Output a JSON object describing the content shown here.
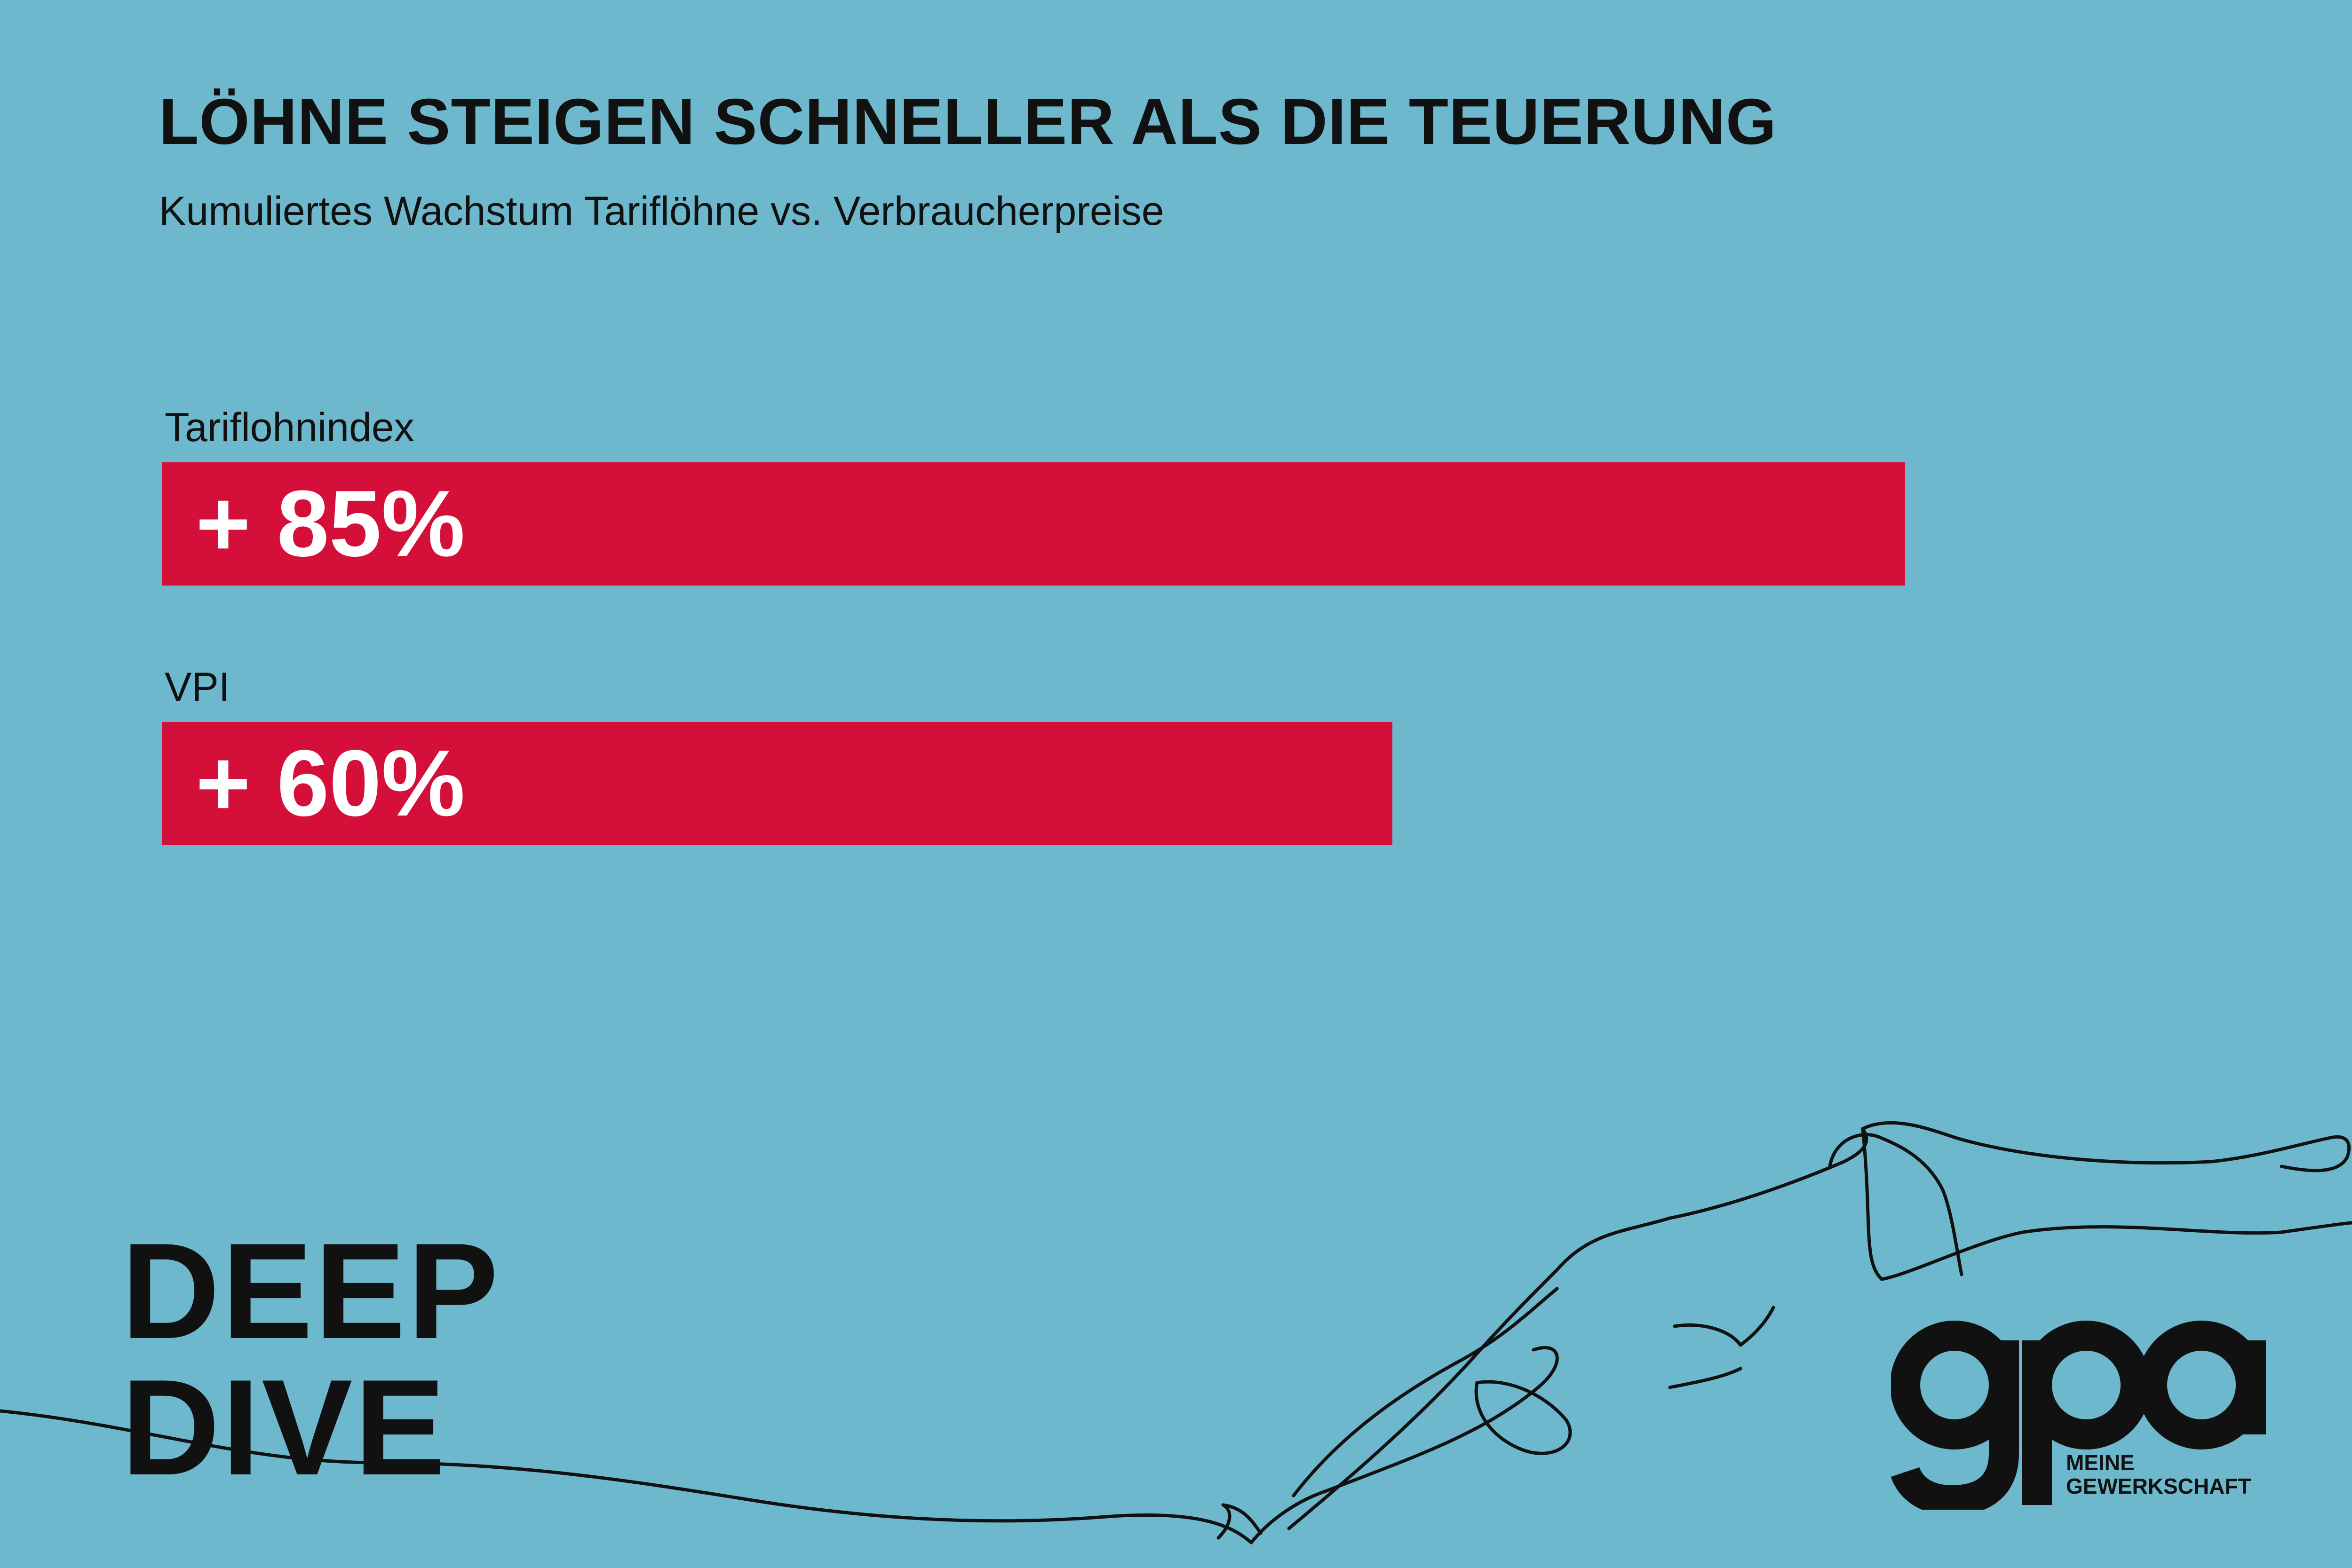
{
  "chart_data": {
    "type": "bar",
    "orientation": "horizontal",
    "title": "LÖHNE STEIGEN SCHNELLER ALS DIE TEUERUNG",
    "subtitle": "Kumuliertes Wachstum Tariflöhne vs. Verbraucherpreise",
    "categories": [
      "Tariflohnindex",
      "VPI"
    ],
    "values": [
      85,
      60
    ],
    "value_labels": [
      "+ 85%",
      "+ 60%"
    ],
    "bar_color": "#d4103a",
    "value_label_color": "#ffffff"
  },
  "branding": {
    "deep_dive": [
      "DEEP",
      "DIVE"
    ],
    "logo_mark": "gpa",
    "logo_tagline": [
      "MEINE",
      "GEWERKSCHAFT"
    ]
  },
  "colors": {
    "background": "#6db8cc",
    "text": "#111111"
  }
}
